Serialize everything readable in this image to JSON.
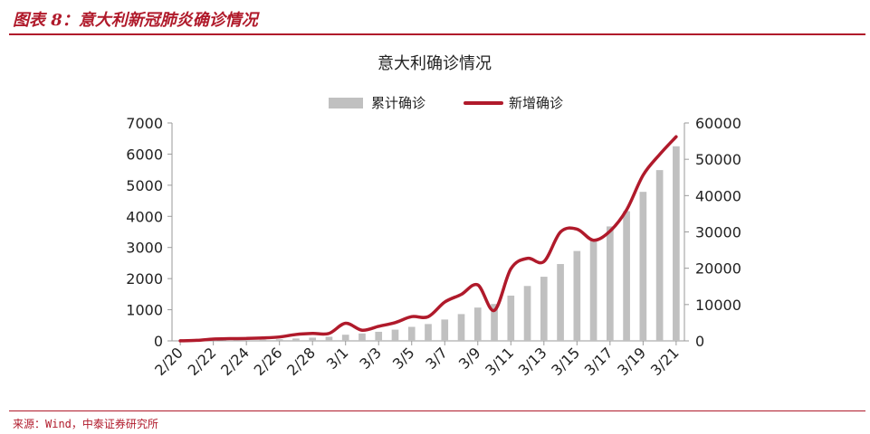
{
  "figure": {
    "title": "图表 8：意大利新冠肺炎确诊情况",
    "source": "来源：Wind，中泰证券研究所"
  },
  "colors": {
    "bar": "#c0c0c0",
    "line": "#b01a2b",
    "accent": "#b01a2b",
    "axis": "#9a9a9a",
    "text": "#222222"
  },
  "chart_data": {
    "type": "bar",
    "title": "意大利确诊情况",
    "categories": [
      "2/20",
      "2/21",
      "2/22",
      "2/23",
      "2/24",
      "2/25",
      "2/26",
      "2/27",
      "2/28",
      "2/29",
      "3/1",
      "3/2",
      "3/3",
      "3/4",
      "3/5",
      "3/6",
      "3/7",
      "3/8",
      "3/9",
      "3/10",
      "3/11",
      "3/12",
      "3/13",
      "3/14",
      "3/15",
      "3/16",
      "3/17",
      "3/18",
      "3/19",
      "3/20",
      "3/21"
    ],
    "tick_labels": [
      "2/20",
      "2/22",
      "2/24",
      "2/26",
      "2/28",
      "3/1",
      "3/3",
      "3/5",
      "3/7",
      "3/9",
      "3/11",
      "3/13",
      "3/15",
      "3/17",
      "3/19",
      "3/21"
    ],
    "series": [
      {
        "name": "累计确诊",
        "type": "bar",
        "axis": "right",
        "values": [
          3,
          20,
          79,
          150,
          227,
          320,
          445,
          650,
          888,
          1128,
          1694,
          2036,
          2502,
          3089,
          3858,
          4636,
          5883,
          7375,
          9172,
          10149,
          12462,
          15113,
          17660,
          21157,
          24747,
          27980,
          31506,
          35713,
          41035,
          47021,
          53578
        ]
      },
      {
        "name": "新增确诊",
        "type": "line",
        "axis": "left",
        "values": [
          3,
          17,
          59,
          71,
          78,
          93,
          125,
          205,
          238,
          240,
          566,
          342,
          466,
          587,
          778,
          778,
          1247,
          1492,
          1797,
          977,
          2313,
          2651,
          2547,
          3497,
          3590,
          3233,
          3526,
          4207,
          5322,
          5986,
          6557
        ]
      }
    ],
    "y_left": {
      "min": 0,
      "max": 7000,
      "step": 1000,
      "ticks": [
        "0",
        "1000",
        "2000",
        "3000",
        "4000",
        "5000",
        "6000",
        "7000"
      ]
    },
    "y_right": {
      "min": 0,
      "max": 60000,
      "step": 10000,
      "ticks": [
        "0",
        "10000",
        "20000",
        "30000",
        "40000",
        "50000",
        "60000"
      ]
    },
    "legend_position": "top-center",
    "grid": false
  }
}
